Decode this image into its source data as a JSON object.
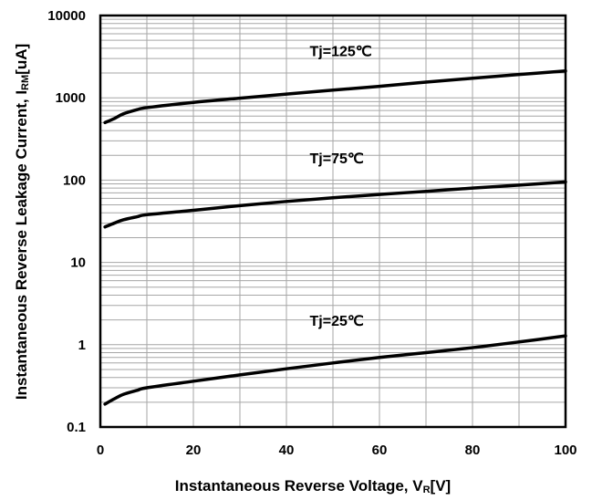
{
  "chart_data": {
    "type": "line",
    "x_label_main": "Instantaneous Reverse Voltage, V",
    "x_label_sub": "R",
    "x_label_unit": "[V]",
    "y_label_main": "Instantaneous Reverse Leakage Current, I",
    "y_label_sub": "RM",
    "y_label_unit": "[uA]",
    "x_scale": "linear",
    "y_scale": "log",
    "xlim": [
      0,
      100
    ],
    "ylim": [
      0.1,
      10000
    ],
    "x_ticks": [
      "0",
      "20",
      "40",
      "60",
      "80",
      "100"
    ],
    "y_ticks": [
      "0.1",
      "1",
      "10",
      "100",
      "1000",
      "10000"
    ],
    "grid": true,
    "line_color": "#000000",
    "grid_color": "#a6a6a6",
    "series": [
      {
        "name": "Tj=125℃",
        "x": [
          1,
          3,
          5,
          8,
          10,
          20,
          30,
          40,
          50,
          60,
          70,
          80,
          90,
          100
        ],
        "y": [
          500,
          560,
          640,
          720,
          760,
          880,
          990,
          1110,
          1240,
          1380,
          1550,
          1730,
          1920,
          2120
        ]
      },
      {
        "name": "Tj=75℃",
        "x": [
          1,
          3,
          5,
          8,
          10,
          20,
          30,
          40,
          50,
          60,
          70,
          80,
          90,
          100
        ],
        "y": [
          27,
          30,
          33,
          36,
          38,
          43,
          49,
          55,
          61,
          67,
          73,
          80,
          87,
          95
        ]
      },
      {
        "name": "Tj=25℃",
        "x": [
          1,
          3,
          5,
          8,
          10,
          20,
          30,
          40,
          50,
          60,
          70,
          80,
          90,
          100
        ],
        "y": [
          0.19,
          0.22,
          0.25,
          0.28,
          0.3,
          0.36,
          0.43,
          0.51,
          0.6,
          0.7,
          0.8,
          0.92,
          1.08,
          1.28
        ]
      }
    ]
  }
}
